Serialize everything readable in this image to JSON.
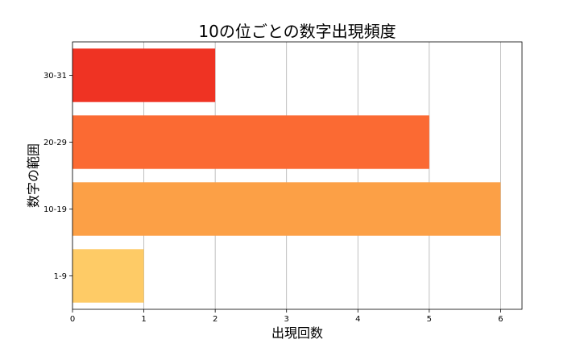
{
  "chart_data": {
    "type": "bar",
    "orientation": "horizontal",
    "title": "10の位ごとの数字出現頻度",
    "xlabel": "出現回数",
    "ylabel": "数字の範囲",
    "categories": [
      "1-9",
      "10-19",
      "20-29",
      "30-31"
    ],
    "values": [
      1,
      6,
      5,
      2
    ],
    "colors": [
      "#fecb66",
      "#fca046",
      "#fb6a33",
      "#ef3323"
    ],
    "xlim": [
      0,
      6.3
    ],
    "xticks": [
      0,
      1,
      2,
      3,
      4,
      5,
      6
    ],
    "grid": "vertical",
    "legend": "none"
  }
}
